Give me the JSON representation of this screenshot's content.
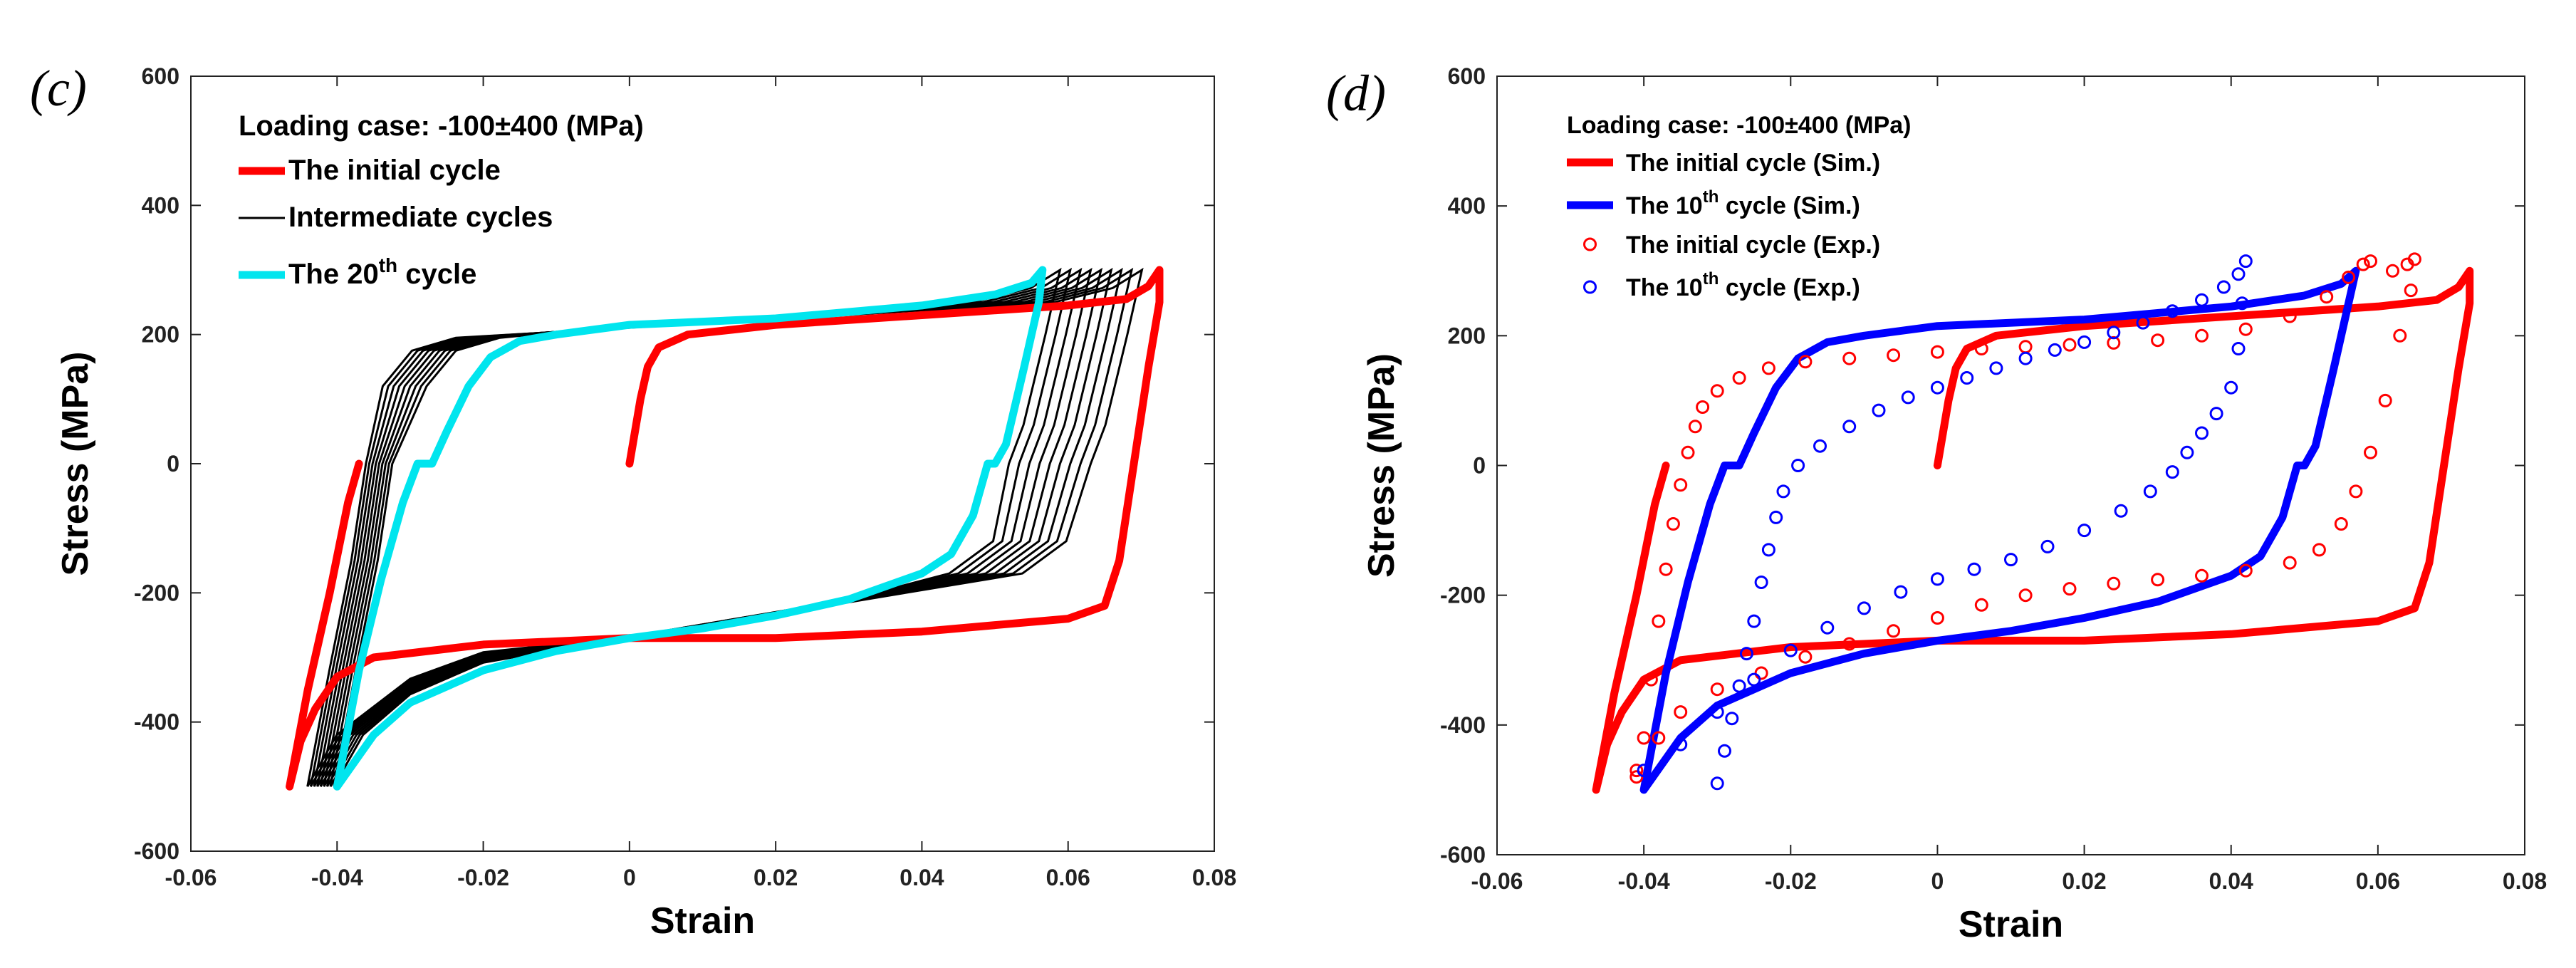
{
  "chart_data": [
    {
      "id": "c",
      "panel_label": "(c)",
      "panel_letter": "c",
      "type": "line",
      "xlabel": "Strain",
      "ylabel": "Stress (MPa)",
      "xlim": [
        -0.06,
        0.08
      ],
      "ylim": [
        -600,
        600
      ],
      "xticks": [
        -0.06,
        -0.04,
        -0.02,
        0,
        0.02,
        0.04,
        0.06,
        0.08
      ],
      "xtick_labels": [
        "-0.06",
        "-0.04",
        "-0.02",
        "0",
        "0.02",
        "0.04",
        "0.06",
        "0.08"
      ],
      "yticks": [
        -600,
        -400,
        -200,
        0,
        200,
        400,
        600
      ],
      "ytick_labels": [
        "-600",
        "-400",
        "-200",
        "0",
        "200",
        "400",
        "600"
      ],
      "legend": {
        "title": "Loading case: -100±400 (MPa)",
        "entries": [
          {
            "text": "The initial cycle",
            "color": "#ff0000"
          },
          {
            "text": "Intermediate cycles",
            "color": "#000000"
          },
          {
            "text_main": "The 20",
            "text_sup": "th",
            "text_tail": " cycle",
            "color": "#00e5ee"
          }
        ]
      },
      "series": [
        {
          "name": "The initial cycle",
          "color": "#ff0000",
          "points": [
            [
              0,
              0
            ],
            [
              0.0015,
              100
            ],
            [
              0.0025,
              150
            ],
            [
              0.004,
              180
            ],
            [
              0.008,
              200
            ],
            [
              0.02,
              215
            ],
            [
              0.04,
              230
            ],
            [
              0.06,
              245
            ],
            [
              0.068,
              255
            ],
            [
              0.071,
              275
            ],
            [
              0.0725,
              300
            ],
            [
              0.0725,
              250
            ],
            [
              0.071,
              150
            ],
            [
              0.069,
              0
            ],
            [
              0.067,
              -150
            ],
            [
              0.065,
              -220
            ],
            [
              0.06,
              -240
            ],
            [
              0.04,
              -260
            ],
            [
              0.02,
              -270
            ],
            [
              0,
              -270
            ],
            [
              -0.02,
              -280
            ],
            [
              -0.035,
              -300
            ],
            [
              -0.04,
              -330
            ],
            [
              -0.043,
              -380
            ],
            [
              -0.045,
              -430
            ],
            [
              -0.0465,
              -500
            ],
            [
              -0.044,
              -350
            ],
            [
              -0.041,
              -200
            ],
            [
              -0.0385,
              -60
            ],
            [
              -0.037,
              0
            ]
          ]
        },
        {
          "name": "The 20th cycle",
          "color": "#00e5ee",
          "points": [
            [
              -0.04,
              -500
            ],
            [
              -0.037,
              -320
            ],
            [
              -0.034,
              -180
            ],
            [
              -0.031,
              -60
            ],
            [
              -0.029,
              0
            ],
            [
              -0.027,
              0
            ],
            [
              -0.025,
              50
            ],
            [
              -0.022,
              120
            ],
            [
              -0.019,
              165
            ],
            [
              -0.015,
              190
            ],
            [
              -0.01,
              200
            ],
            [
              0,
              215
            ],
            [
              0.02,
              225
            ],
            [
              0.04,
              245
            ],
            [
              0.05,
              262
            ],
            [
              0.055,
              280
            ],
            [
              0.0565,
              300
            ],
            [
              0.056,
              250
            ],
            [
              0.054,
              150
            ],
            [
              0.0515,
              30
            ],
            [
              0.05,
              0
            ],
            [
              0.049,
              0
            ],
            [
              0.047,
              -80
            ],
            [
              0.044,
              -140
            ],
            [
              0.04,
              -170
            ],
            [
              0.03,
              -210
            ],
            [
              0.02,
              -235
            ],
            [
              0.01,
              -255
            ],
            [
              0,
              -270
            ],
            [
              -0.01,
              -290
            ],
            [
              -0.02,
              -320
            ],
            [
              -0.03,
              -370
            ],
            [
              -0.035,
              -420
            ],
            [
              -0.04,
              -500
            ]
          ]
        }
      ],
      "intermediate_cycles": {
        "count": 9,
        "color": "#000000"
      }
    },
    {
      "id": "d",
      "panel_label": "(d)",
      "panel_letter": "d",
      "type": "line",
      "xlabel": "Strain",
      "ylabel": "Stress (MPa)",
      "xlim": [
        -0.06,
        0.08
      ],
      "ylim": [
        -600,
        600
      ],
      "xticks": [
        -0.06,
        -0.04,
        -0.02,
        0,
        0.02,
        0.04,
        0.06,
        0.08
      ],
      "xtick_labels": [
        "-0.06",
        "-0.04",
        "-0.02",
        "0",
        "0.02",
        "0.04",
        "0.06",
        "0.08"
      ],
      "yticks": [
        -600,
        -400,
        -200,
        0,
        200,
        400,
        600
      ],
      "ytick_labels": [
        "-600",
        "-400",
        "-200",
        "0",
        "200",
        "400",
        "600"
      ],
      "legend": {
        "title": "Loading case: -100±400 (MPa)",
        "entries": [
          {
            "text_main": "The initial cycle (Sim.)",
            "text_sup": "",
            "text_tail": "",
            "color": "#ff0000",
            "style": "line"
          },
          {
            "text_main": "The 10",
            "text_sup": "th",
            "text_tail": " cycle (Sim.)",
            "color": "#0000ff",
            "style": "line"
          },
          {
            "text_main": "The initial cycle (Exp.)",
            "text_sup": "",
            "text_tail": "",
            "color": "#ff0000",
            "style": "marker"
          },
          {
            "text_main": "The 10",
            "text_sup": "th",
            "text_tail": " cycle (Exp.)",
            "color": "#0000ff",
            "style": "marker"
          }
        ]
      },
      "series": [
        {
          "name": "The initial cycle (Sim.)",
          "color": "#ff0000",
          "style": "line",
          "points": [
            [
              0,
              0
            ],
            [
              0.0015,
              100
            ],
            [
              0.0025,
              150
            ],
            [
              0.004,
              180
            ],
            [
              0.008,
              200
            ],
            [
              0.02,
              215
            ],
            [
              0.04,
              230
            ],
            [
              0.06,
              245
            ],
            [
              0.068,
              255
            ],
            [
              0.071,
              275
            ],
            [
              0.0725,
              300
            ],
            [
              0.0725,
              250
            ],
            [
              0.071,
              150
            ],
            [
              0.069,
              0
            ],
            [
              0.067,
              -150
            ],
            [
              0.065,
              -220
            ],
            [
              0.06,
              -240
            ],
            [
              0.04,
              -260
            ],
            [
              0.02,
              -270
            ],
            [
              0,
              -270
            ],
            [
              -0.02,
              -280
            ],
            [
              -0.035,
              -300
            ],
            [
              -0.04,
              -330
            ],
            [
              -0.043,
              -380
            ],
            [
              -0.045,
              -430
            ],
            [
              -0.0465,
              -500
            ],
            [
              -0.044,
              -350
            ],
            [
              -0.041,
              -200
            ],
            [
              -0.0385,
              -60
            ],
            [
              -0.037,
              0
            ]
          ]
        },
        {
          "name": "The 10th cycle (Sim.)",
          "color": "#0000ff",
          "style": "line",
          "points": [
            [
              -0.04,
              -500
            ],
            [
              -0.037,
              -320
            ],
            [
              -0.034,
              -180
            ],
            [
              -0.031,
              -60
            ],
            [
              -0.029,
              0
            ],
            [
              -0.027,
              0
            ],
            [
              -0.025,
              50
            ],
            [
              -0.022,
              120
            ],
            [
              -0.019,
              165
            ],
            [
              -0.015,
              190
            ],
            [
              -0.01,
              200
            ],
            [
              0,
              215
            ],
            [
              0.02,
              225
            ],
            [
              0.04,
              245
            ],
            [
              0.05,
              262
            ],
            [
              0.055,
              280
            ],
            [
              0.057,
              300
            ],
            [
              0.056,
              250
            ],
            [
              0.054,
              150
            ],
            [
              0.0515,
              30
            ],
            [
              0.05,
              0
            ],
            [
              0.049,
              0
            ],
            [
              0.047,
              -80
            ],
            [
              0.044,
              -140
            ],
            [
              0.04,
              -170
            ],
            [
              0.03,
              -210
            ],
            [
              0.02,
              -235
            ],
            [
              0.01,
              -255
            ],
            [
              0,
              -270
            ],
            [
              -0.01,
              -290
            ],
            [
              -0.02,
              -320
            ],
            [
              -0.03,
              -370
            ],
            [
              -0.035,
              -420
            ],
            [
              -0.04,
              -500
            ]
          ]
        },
        {
          "name": "The initial cycle (Exp.)",
          "color": "#ff0000",
          "style": "marker",
          "points": [
            [
              -0.041,
              -480
            ],
            [
              -0.04,
              -420
            ],
            [
              -0.039,
              -330
            ],
            [
              -0.038,
              -240
            ],
            [
              -0.037,
              -160
            ],
            [
              -0.036,
              -90
            ],
            [
              -0.035,
              -30
            ],
            [
              -0.034,
              20
            ],
            [
              -0.033,
              60
            ],
            [
              -0.032,
              90
            ],
            [
              -0.03,
              115
            ],
            [
              -0.027,
              135
            ],
            [
              -0.023,
              150
            ],
            [
              -0.018,
              160
            ],
            [
              -0.012,
              165
            ],
            [
              -0.006,
              170
            ],
            [
              0,
              175
            ],
            [
              0.006,
              180
            ],
            [
              0.012,
              183
            ],
            [
              0.018,
              186
            ],
            [
              0.024,
              189
            ],
            [
              0.03,
              193
            ],
            [
              0.036,
              200
            ],
            [
              0.042,
              210
            ],
            [
              0.048,
              230
            ],
            [
              0.053,
              260
            ],
            [
              0.056,
              290
            ],
            [
              0.058,
              310
            ],
            [
              0.059,
              315
            ],
            [
              0.062,
              300
            ],
            [
              0.064,
              310
            ],
            [
              0.065,
              318
            ],
            [
              0.0645,
              270
            ],
            [
              0.063,
              200
            ],
            [
              0.061,
              100
            ],
            [
              0.059,
              20
            ],
            [
              0.057,
              -40
            ],
            [
              0.055,
              -90
            ],
            [
              0.052,
              -130
            ],
            [
              0.048,
              -150
            ],
            [
              0.042,
              -162
            ],
            [
              0.036,
              -170
            ],
            [
              0.03,
              -176
            ],
            [
              0.024,
              -182
            ],
            [
              0.018,
              -190
            ],
            [
              0.012,
              -200
            ],
            [
              0.006,
              -215
            ],
            [
              0,
              -235
            ],
            [
              -0.006,
              -255
            ],
            [
              -0.012,
              -275
            ],
            [
              -0.018,
              -295
            ],
            [
              -0.024,
              -320
            ],
            [
              -0.03,
              -345
            ],
            [
              -0.035,
              -380
            ],
            [
              -0.038,
              -420
            ],
            [
              -0.041,
              -470
            ]
          ]
        },
        {
          "name": "The 10th cycle (Exp.)",
          "color": "#0000ff",
          "style": "marker",
          "points": [
            [
              -0.03,
              -490
            ],
            [
              -0.029,
              -440
            ],
            [
              -0.028,
              -390
            ],
            [
              -0.027,
              -340
            ],
            [
              -0.026,
              -290
            ],
            [
              -0.025,
              -240
            ],
            [
              -0.024,
              -180
            ],
            [
              -0.023,
              -130
            ],
            [
              -0.022,
              -80
            ],
            [
              -0.021,
              -40
            ],
            [
              -0.019,
              0
            ],
            [
              -0.016,
              30
            ],
            [
              -0.012,
              60
            ],
            [
              -0.008,
              85
            ],
            [
              -0.004,
              105
            ],
            [
              0,
              120
            ],
            [
              0.004,
              135
            ],
            [
              0.008,
              150
            ],
            [
              0.012,
              165
            ],
            [
              0.016,
              178
            ],
            [
              0.02,
              190
            ],
            [
              0.024,
              205
            ],
            [
              0.028,
              220
            ],
            [
              0.032,
              238
            ],
            [
              0.036,
              255
            ],
            [
              0.039,
              275
            ],
            [
              0.041,
              295
            ],
            [
              0.042,
              315
            ],
            [
              0.0415,
              250
            ],
            [
              0.041,
              180
            ],
            [
              0.04,
              120
            ],
            [
              0.038,
              80
            ],
            [
              0.036,
              50
            ],
            [
              0.034,
              20
            ],
            [
              0.032,
              -10
            ],
            [
              0.029,
              -40
            ],
            [
              0.025,
              -70
            ],
            [
              0.02,
              -100
            ],
            [
              0.015,
              -125
            ],
            [
              0.01,
              -145
            ],
            [
              0.005,
              -160
            ],
            [
              0,
              -175
            ],
            [
              -0.005,
              -195
            ],
            [
              -0.01,
              -220
            ],
            [
              -0.015,
              -250
            ],
            [
              -0.02,
              -285
            ],
            [
              -0.025,
              -330
            ],
            [
              -0.03,
              -380
            ],
            [
              -0.035,
              -430
            ],
            [
              -0.04,
              -470
            ]
          ]
        }
      ]
    }
  ]
}
